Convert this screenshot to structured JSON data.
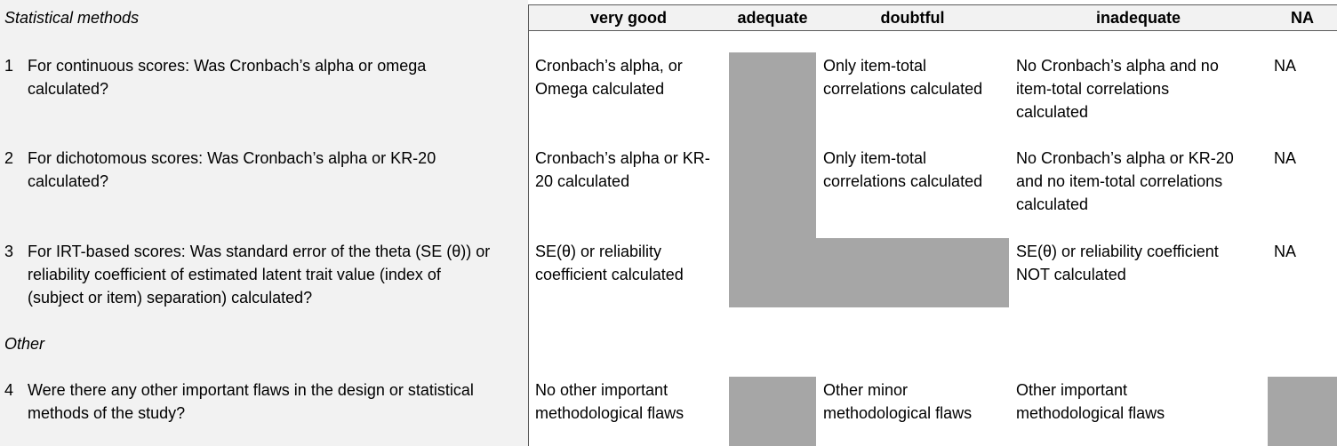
{
  "header": {
    "section": "Statistical methods",
    "columns": [
      "very good",
      "adequate",
      "doubtful",
      "inadequate",
      "NA"
    ]
  },
  "section2": "Other",
  "rows": [
    {
      "num": "1",
      "question": "For continuous scores: Was Cronbach’s alpha or omega\ncalculated?",
      "very_good": "Cronbach’s alpha, or\nOmega calculated",
      "adequate": "",
      "doubtful": "Only item-total\ncorrelations calculated",
      "inadequate": "No Cronbach’s alpha and no\nitem-total correlations\ncalculated",
      "na": "NA"
    },
    {
      "num": "2",
      "question": "For dichotomous scores: Was Cronbach’s alpha or KR-20\ncalculated?",
      "very_good": "Cronbach’s alpha or KR-\n20 calculated",
      "adequate": "",
      "doubtful": "Only item-total\ncorrelations calculated",
      "inadequate": "No Cronbach’s alpha or KR-20\nand no item-total correlations\ncalculated",
      "na": "NA"
    },
    {
      "num": "3",
      "question": "For IRT-based scores: Was standard error of the theta (SE (θ)) or\nreliability coefficient of estimated latent trait value (index of\n(subject or item) separation) calculated?",
      "very_good": "SE(θ) or reliability\ncoefficient calculated",
      "adequate": "",
      "doubtful": "",
      "inadequate": "SE(θ) or reliability coefficient\nNOT calculated",
      "na": "NA"
    },
    {
      "num": "4",
      "question": "Were there any other important flaws in the design or statistical\nmethods of the study?",
      "very_good": "No other important\nmethodological flaws",
      "adequate": "",
      "doubtful": "Other minor\nmethodological flaws",
      "inadequate": "Other important\nmethodological flaws",
      "na": ""
    }
  ]
}
